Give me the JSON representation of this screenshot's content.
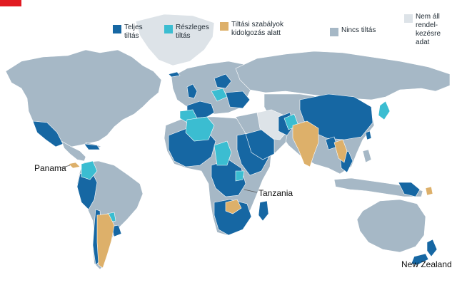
{
  "colors": {
    "accent": "#e11b22",
    "full_ban": "#1667a3",
    "partial_ban": "#3bbdd1",
    "in_progress": "#ddb06a",
    "no_ban": "#a6b8c6",
    "no_data": "#dde3e8",
    "ocean": "#ffffff"
  },
  "legend": [
    {
      "key": "full_ban",
      "label": "Teljes\ntiltás"
    },
    {
      "key": "partial_ban",
      "label": "Részleges\ntiltás"
    },
    {
      "key": "in_progress",
      "label": "Tiltási szabályok\nkidolgozás alatt"
    },
    {
      "key": "no_ban",
      "label": "Nincs tiltás"
    },
    {
      "key": "no_data",
      "label": "Nem áll\nrendel-\nkezésre\nadat"
    }
  ],
  "callouts": {
    "panama": "Panama",
    "tanzania": "Tanzania",
    "new_zealand": "New Zealand"
  }
}
